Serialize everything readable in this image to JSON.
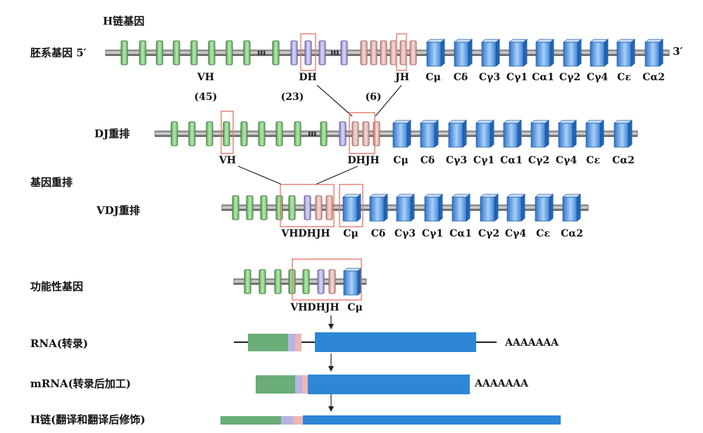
{
  "title": "H链基因",
  "rows": {
    "germline": "胚系基因 5′",
    "three_prime": "3′",
    "dj": "DJ重排",
    "gene_rearrangement": "基因重排",
    "vdj": "VDJ重排",
    "functional": "功能性基因",
    "rna": "RNA(转录)",
    "mrna": "mRNA(转录后加工)",
    "hchain": "H链(翻译和翻译后修饰)"
  },
  "germline_labels": {
    "vh": "VH",
    "dh": "DH",
    "jh": "JH",
    "vh_count": "(45)",
    "dh_count": "(23)",
    "jh_count": "(6)"
  },
  "constant_genes": [
    "Cμ",
    "Cδ",
    "Cγ3",
    "Cγ1",
    "Cα1",
    "Cγ2",
    "Cγ4",
    "Cε",
    "Cα2"
  ],
  "dj_labels": {
    "vh": "VH",
    "dhjh": "DHJH"
  },
  "vdj_labels": {
    "vhdhjh": "VHDHJH"
  },
  "functional_labels": {
    "vhdhjh": "VHDHJH",
    "cmu": "Cμ"
  },
  "poly_a": "AAAAAAA",
  "colors": {
    "v_segment": "#8fd08a",
    "d_segment": "#b8b3e6",
    "j_segment": "#e9b8b4",
    "c_segment": "#5c9ee8",
    "rna_v": "#6aad78",
    "rna_c": "#2e86d6",
    "highlight_box": "#e87a6e",
    "dna_line": "#3a3a3a"
  }
}
